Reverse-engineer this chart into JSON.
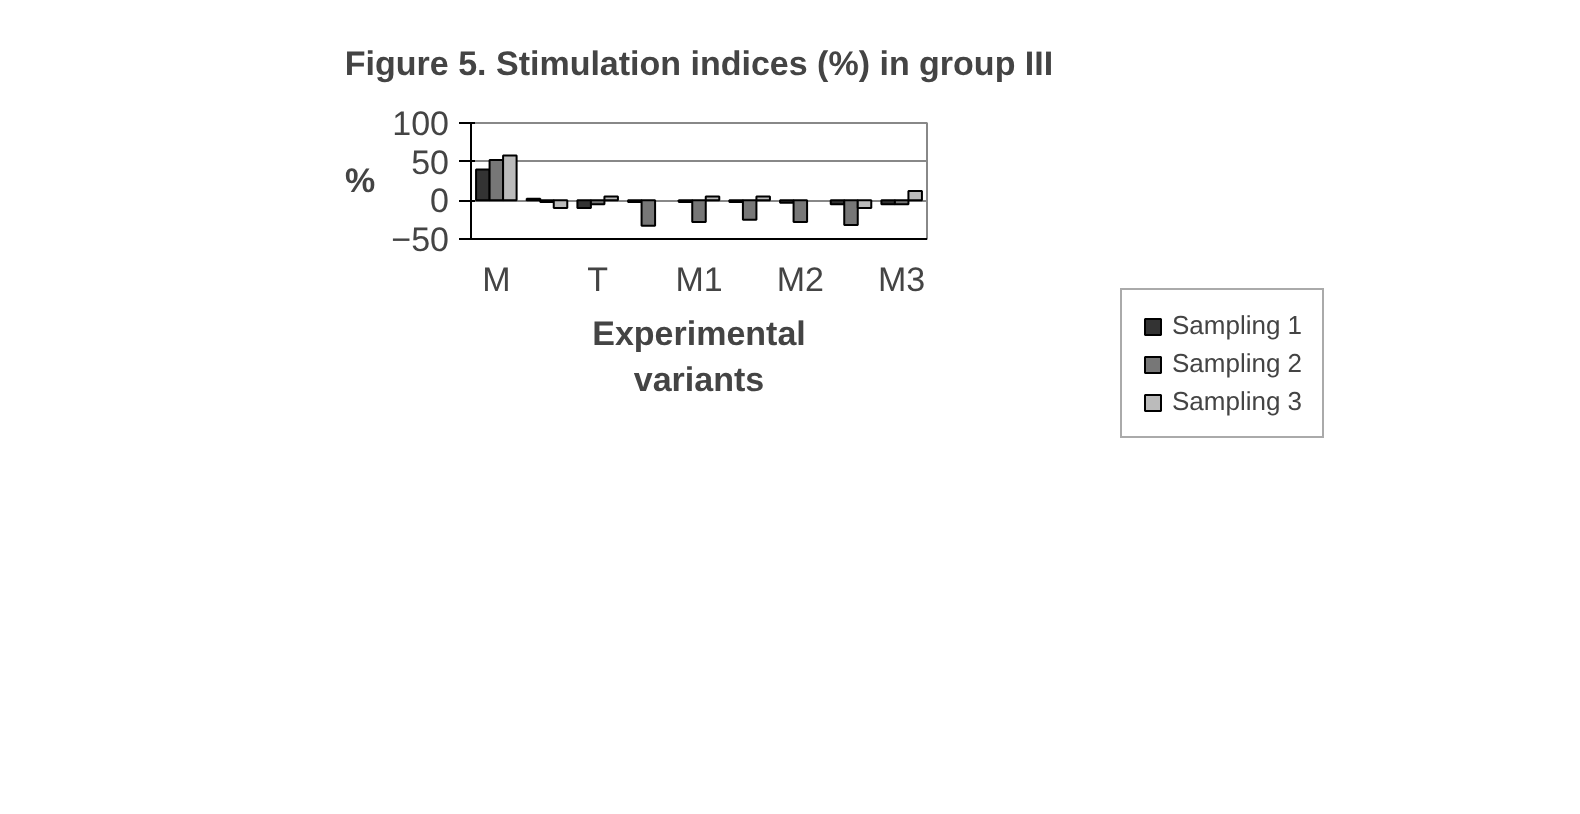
{
  "chart_data": {
    "type": "bar",
    "title": "Figure 5. Stimulation indices (%) in group III",
    "xlabel": "Experimental\nvariants",
    "ylabel": "%",
    "categories": [
      "M",
      null,
      "T",
      null,
      "M1",
      null,
      "M2",
      null,
      "M3"
    ],
    "series": [
      {
        "name": "Sampling 1",
        "color": "#333333",
        "values": [
          40,
          2,
          -10,
          -2,
          -2,
          -2,
          -3,
          -5,
          -5
        ]
      },
      {
        "name": "Sampling 2",
        "color": "#777777",
        "values": [
          52,
          -2,
          -5,
          -33,
          -28,
          -25,
          -28,
          -32,
          -5
        ]
      },
      {
        "name": "Sampling 3",
        "color": "#bbbbbb",
        "values": [
          58,
          -10,
          5,
          null,
          5,
          5,
          null,
          -10,
          12
        ]
      }
    ],
    "ylim": [
      -50,
      100
    ],
    "yticks": [
      -50,
      0,
      50,
      100
    ],
    "grid": "y",
    "legend": "right"
  }
}
